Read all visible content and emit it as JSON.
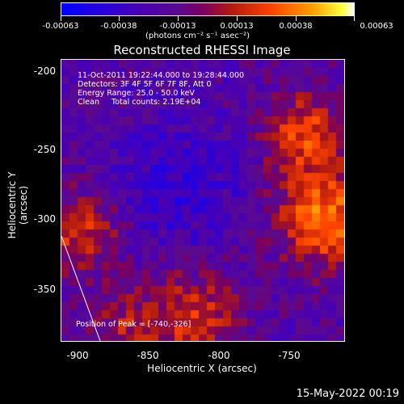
{
  "colorbar": {
    "ticks": [
      "-0.00063",
      "-0.00038",
      "-0.00013",
      "0.00013",
      "0.00038",
      "0.00063"
    ],
    "units": "(photons cm⁻² s⁻¹ asec⁻²)"
  },
  "title": "Reconstructed RHESSI Image",
  "info": {
    "line1": "11-Oct-2011 19:22:44.000 to 19:28:44.000",
    "line2": "Detectors: 3F 4F 5F 6F 7F 8F, Att 0",
    "line3": "Energy Range: 25.0 - 50.0 keV",
    "line4": "Clean     Total counts: 2.19E+04"
  },
  "peak_label": "Position of Peak = [-740,-326]",
  "axes": {
    "xlabel": "Heliocentric X (arcsec)",
    "ylabel": "Heliocentric Y (arcsec)",
    "xticks": [
      "-900",
      "-850",
      "-800",
      "-750"
    ],
    "yticks": [
      "-200",
      "-250",
      "-300",
      "-350"
    ]
  },
  "footer": "15-May-2022 00:19"
}
